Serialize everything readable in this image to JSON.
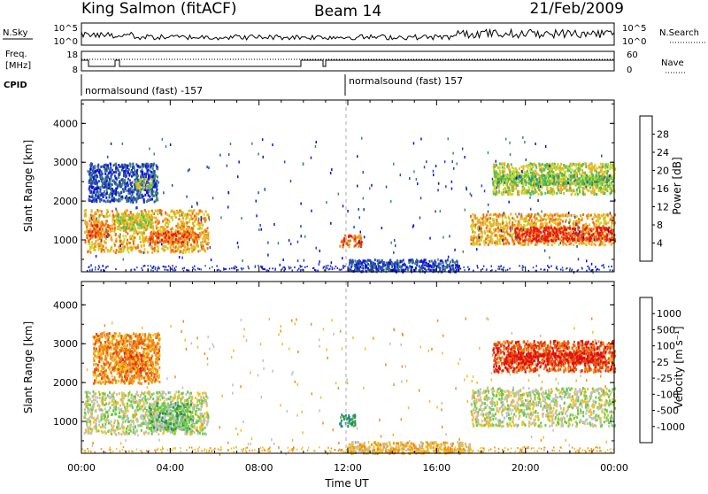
{
  "header": {
    "station": "King Salmon (fitACF)",
    "beam": "Beam 14",
    "date": "21/Feb/2009"
  },
  "top_panels": {
    "nsky_label": "N.Sky",
    "nsky_ticks": [
      "10^5",
      "10^0"
    ],
    "nsearch_label": "N.Search",
    "nsearch_ticks": [
      "10^5",
      "10^0"
    ],
    "freq_label_line1": "Freq.",
    "freq_label_line2": "[MHz]",
    "freq_ticks": [
      "18",
      "8"
    ],
    "nave_label": "Nave",
    "nave_ticks": [
      "60",
      "0"
    ],
    "cpid_label": "CPID",
    "cpid_segments": [
      "normalsound (fast) -157",
      "normalsound (fast) 157"
    ]
  },
  "chart_data": [
    {
      "type": "heatmap",
      "name": "power-panel",
      "ylabel": "Slant Range [km]",
      "xlabel": "Time UT",
      "xlim_hours": [
        0,
        24
      ],
      "ylim": [
        180,
        4600
      ],
      "x_ticks": [
        "00:00",
        "04:00",
        "08:00",
        "12:00",
        "16:00",
        "20:00",
        "00:00"
      ],
      "y_ticks": [
        1000,
        2000,
        3000,
        4000
      ],
      "colorbar": {
        "label": "Power [dB]",
        "ticks": [
          "4",
          "8",
          "12",
          "16",
          "20",
          "24",
          "28"
        ],
        "colors": [
          "#1010e0",
          "#2848b8",
          "#3d8c6a",
          "#4fbf4f",
          "#c8d82a",
          "#f5a623",
          "#f06a12",
          "#e81818"
        ]
      },
      "regions": [
        {
          "t0": 0.1,
          "t1": 5.7,
          "r0": 700,
          "r1": 1800,
          "level": 5
        },
        {
          "t0": 0.2,
          "t1": 1.2,
          "r0": 1100,
          "r1": 1450,
          "level": 6
        },
        {
          "t0": 3.0,
          "t1": 5.3,
          "r0": 950,
          "r1": 1250,
          "level": 6
        },
        {
          "t0": 1.5,
          "t1": 3.2,
          "r0": 1300,
          "r1": 1700,
          "level": 4
        },
        {
          "t0": 0.3,
          "t1": 3.4,
          "r0": 2000,
          "r1": 3000,
          "level": 1
        },
        {
          "t0": 2.4,
          "t1": 3.2,
          "r0": 2350,
          "r1": 2600,
          "level": 4
        },
        {
          "t0": 11.6,
          "t1": 12.6,
          "r0": 850,
          "r1": 1150,
          "level": 6
        },
        {
          "t0": 12.0,
          "t1": 17.0,
          "r0": 200,
          "r1": 520,
          "level": 1
        },
        {
          "t0": 17.5,
          "t1": 24.0,
          "r0": 900,
          "r1": 1700,
          "level": 5
        },
        {
          "t0": 19.5,
          "t1": 24.0,
          "r0": 1000,
          "r1": 1350,
          "level": 7
        },
        {
          "t0": 18.5,
          "t1": 24.0,
          "r0": 2200,
          "r1": 3000,
          "level": 4
        },
        {
          "t0": 18.7,
          "t1": 23.8,
          "r0": 2450,
          "r1": 2700,
          "level": 3
        }
      ]
    },
    {
      "type": "heatmap",
      "name": "velocity-panel",
      "ylabel": "Slant Range [km]",
      "xlabel": "Time UT",
      "xlim_hours": [
        0,
        24
      ],
      "ylim": [
        180,
        4600
      ],
      "x_ticks": [
        "00:00",
        "04:00",
        "08:00",
        "12:00",
        "16:00",
        "20:00",
        "00:00"
      ],
      "y_ticks": [
        1000,
        2000,
        3000,
        4000
      ],
      "colorbar": {
        "label": "Velocity [m s⁻¹]",
        "ticks": [
          "1000",
          "500",
          "100",
          "25",
          "-25",
          "-100",
          "-500",
          "-1000"
        ],
        "colors": [
          "#1a3fd0",
          "#2e7fc8",
          "#2f8f55",
          "#5fcf3a",
          "#c0c0c0",
          "#f0c020",
          "#f08c14",
          "#e85010",
          "#e01010"
        ]
      },
      "regions": [
        {
          "t0": 0.1,
          "t1": 5.7,
          "r0": 700,
          "r1": 1800,
          "level": 4
        },
        {
          "t0": 3.0,
          "t1": 5.0,
          "r0": 800,
          "r1": 1500,
          "level": 3
        },
        {
          "t0": 1.8,
          "t1": 2.8,
          "r0": 2300,
          "r1": 2800,
          "level": 8
        },
        {
          "t0": 0.5,
          "t1": 3.5,
          "r0": 2000,
          "r1": 3300,
          "level": 6
        },
        {
          "t0": 11.6,
          "t1": 12.3,
          "r0": 900,
          "r1": 1200,
          "level": 2
        },
        {
          "t0": 12.0,
          "t1": 17.5,
          "r0": 200,
          "r1": 500,
          "level": 5
        },
        {
          "t0": 17.5,
          "t1": 24.0,
          "r0": 900,
          "r1": 1900,
          "level": 4
        },
        {
          "t0": 18.5,
          "t1": 24.0,
          "r0": 2300,
          "r1": 3100,
          "level": 7
        },
        {
          "t0": 19.0,
          "t1": 23.5,
          "r0": 2500,
          "r1": 2800,
          "level": 8
        }
      ]
    }
  ]
}
